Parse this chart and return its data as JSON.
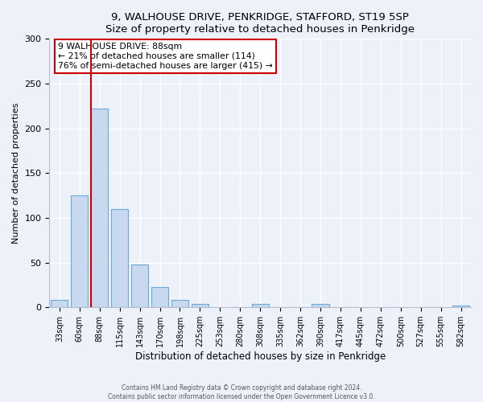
{
  "title1": "9, WALHOUSE DRIVE, PENKRIDGE, STAFFORD, ST19 5SP",
  "title2": "Size of property relative to detached houses in Penkridge",
  "xlabel": "Distribution of detached houses by size in Penkridge",
  "ylabel": "Number of detached properties",
  "bar_labels": [
    "33sqm",
    "60sqm",
    "88sqm",
    "115sqm",
    "143sqm",
    "170sqm",
    "198sqm",
    "225sqm",
    "253sqm",
    "280sqm",
    "308sqm",
    "335sqm",
    "362sqm",
    "390sqm",
    "417sqm",
    "445sqm",
    "472sqm",
    "500sqm",
    "527sqm",
    "555sqm",
    "582sqm"
  ],
  "bar_values": [
    8,
    125,
    222,
    110,
    48,
    23,
    8,
    4,
    0,
    0,
    4,
    0,
    0,
    4,
    0,
    0,
    0,
    0,
    0,
    0,
    2
  ],
  "bar_color": "#c8d8ee",
  "bar_edgecolor": "#6baad4",
  "property_line_label": "9 WALHOUSE DRIVE: 88sqm",
  "annotation_line1": "← 21% of detached houses are smaller (114)",
  "annotation_line2": "76% of semi-detached houses are larger (415) →",
  "annotation_box_edgecolor": "#cc0000",
  "annotation_box_facecolor": "#ffffff",
  "vline_color": "#cc0000",
  "ylim": [
    0,
    300
  ],
  "yticks": [
    0,
    50,
    100,
    150,
    200,
    250,
    300
  ],
  "footer1": "Contains HM Land Registry data © Crown copyright and database right 2024.",
  "footer2": "Contains public sector information licensed under the Open Government Licence v3.0.",
  "background_color": "#edf2fa",
  "plot_background": "#edf2fa",
  "grid_color": "#ffffff",
  "property_bin_idx": 2
}
